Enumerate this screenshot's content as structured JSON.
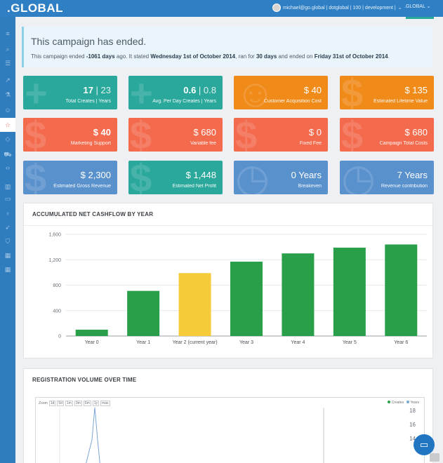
{
  "app": {
    "logo": ".GLOBAL"
  },
  "header": {
    "user_text": "michael@go.global | dotglobal | 100 | development |",
    "domain_select": ".GLOBAL"
  },
  "sidebar": {
    "items": [
      {
        "icon": "menu-icon",
        "glyph": "≡"
      },
      {
        "icon": "search-icon",
        "glyph": "⌕"
      },
      {
        "icon": "list-icon",
        "glyph": "☰"
      },
      {
        "icon": "trend-icon",
        "glyph": "↗"
      },
      {
        "icon": "flask-icon",
        "glyph": "⚗"
      },
      {
        "icon": "user-icon",
        "glyph": "☺"
      },
      {
        "icon": "star-icon",
        "glyph": "☆"
      },
      {
        "icon": "diamond-icon",
        "glyph": "◇"
      },
      {
        "icon": "cart-icon",
        "glyph": "⛟"
      },
      {
        "icon": "code-icon",
        "glyph": "‹›"
      },
      {
        "icon": "bar-chart-icon",
        "glyph": "▥"
      },
      {
        "icon": "folder-icon",
        "glyph": "▭"
      },
      {
        "icon": "bulb-icon",
        "glyph": "♁"
      },
      {
        "icon": "rocket-icon",
        "glyph": "➶"
      },
      {
        "icon": "shield-icon",
        "glyph": "⛉"
      },
      {
        "icon": "grid-icon",
        "glyph": "▦"
      },
      {
        "icon": "grid-alt-icon",
        "glyph": "▦"
      }
    ]
  },
  "alert": {
    "title": "This campaign has ended.",
    "p1": "This campaign ended ",
    "b1": "-1061 days",
    "p2": " ago. It stated ",
    "b2": "Wednesday 1st of October 2014",
    "p3": ", ran for ",
    "b3": "30 days",
    "p4": " and ended on ",
    "b4": "Friday 31st of October 2014",
    "p5": "."
  },
  "cards": [
    {
      "value_strong": "17",
      "value_rest": " | 23",
      "label": "Total Creates | Years",
      "glyph": "+"
    },
    {
      "value_strong": "0.6",
      "value_rest": " | 0.8",
      "label": "Avg. Per Day Creates | Years",
      "glyph": "+"
    },
    {
      "value": "$ 40",
      "label": "Customer Acquisition Cost",
      "glyph": "☺"
    },
    {
      "value": "$ 135",
      "label": "Estimated Lifetime Value",
      "glyph": "$"
    },
    {
      "value_strong": "$ 40",
      "label": "Marketing Support",
      "glyph": "$"
    },
    {
      "value": "$ 680",
      "label": "Variable fee",
      "glyph": "$"
    },
    {
      "value": "$ 0",
      "label": "Fixed Fee",
      "glyph": "$"
    },
    {
      "value": "$ 680",
      "label": "Campaign Total Costs",
      "glyph": "$"
    },
    {
      "value": "$ 2,300",
      "label": "Estimated Gross Revenue",
      "glyph": "$"
    },
    {
      "value": "$ 1,448",
      "label": "Estimated Net Profit",
      "glyph": "$"
    },
    {
      "value": "0 Years",
      "label": "Breakeven",
      "glyph": "◷"
    },
    {
      "value": "7 Years",
      "label": "Revenue contribution",
      "glyph": "◷"
    }
  ],
  "colors": {
    "header": "#2e7fc3",
    "teal": "#2aa89b",
    "orange": "#f08a19",
    "coral": "#f36a4d",
    "blue": "#5991cc",
    "bar_green": "#2a9f4a",
    "bar_current": "#f5cb3a"
  },
  "cashflow_panel": {
    "title": "ACCUMULATED NET CASHFLOW BY YEAR"
  },
  "chart_data": {
    "type": "bar",
    "title": "",
    "categories": [
      "Year 0",
      "Year 1",
      "Year 2 (current year)",
      "Year 3",
      "Year 4",
      "Year 5",
      "Year 6"
    ],
    "values": [
      100,
      710,
      990,
      1170,
      1300,
      1390,
      1440
    ],
    "highlight_index": 2,
    "ylim": [
      0,
      1600
    ],
    "yticks": [
      0,
      400,
      800,
      1200,
      1600
    ],
    "ytick_labels": [
      "0",
      "400",
      "800",
      "1,200",
      "1,600"
    ],
    "grid": true,
    "colors": [
      "#2a9f4a",
      "#2a9f4a",
      "#f5cb3a",
      "#2a9f4a",
      "#2a9f4a",
      "#2a9f4a",
      "#2a9f4a"
    ]
  },
  "registration_panel": {
    "title": "REGISTRATION VOLUME OVER TIME",
    "zoom_label": "Zoom",
    "zoom_buttons": [
      "1d",
      "5d",
      "1m",
      "3m",
      "6m",
      "1y",
      "max"
    ],
    "legend": [
      "Creates",
      "Years"
    ],
    "yticks": [
      "18",
      "16",
      "14"
    ]
  }
}
